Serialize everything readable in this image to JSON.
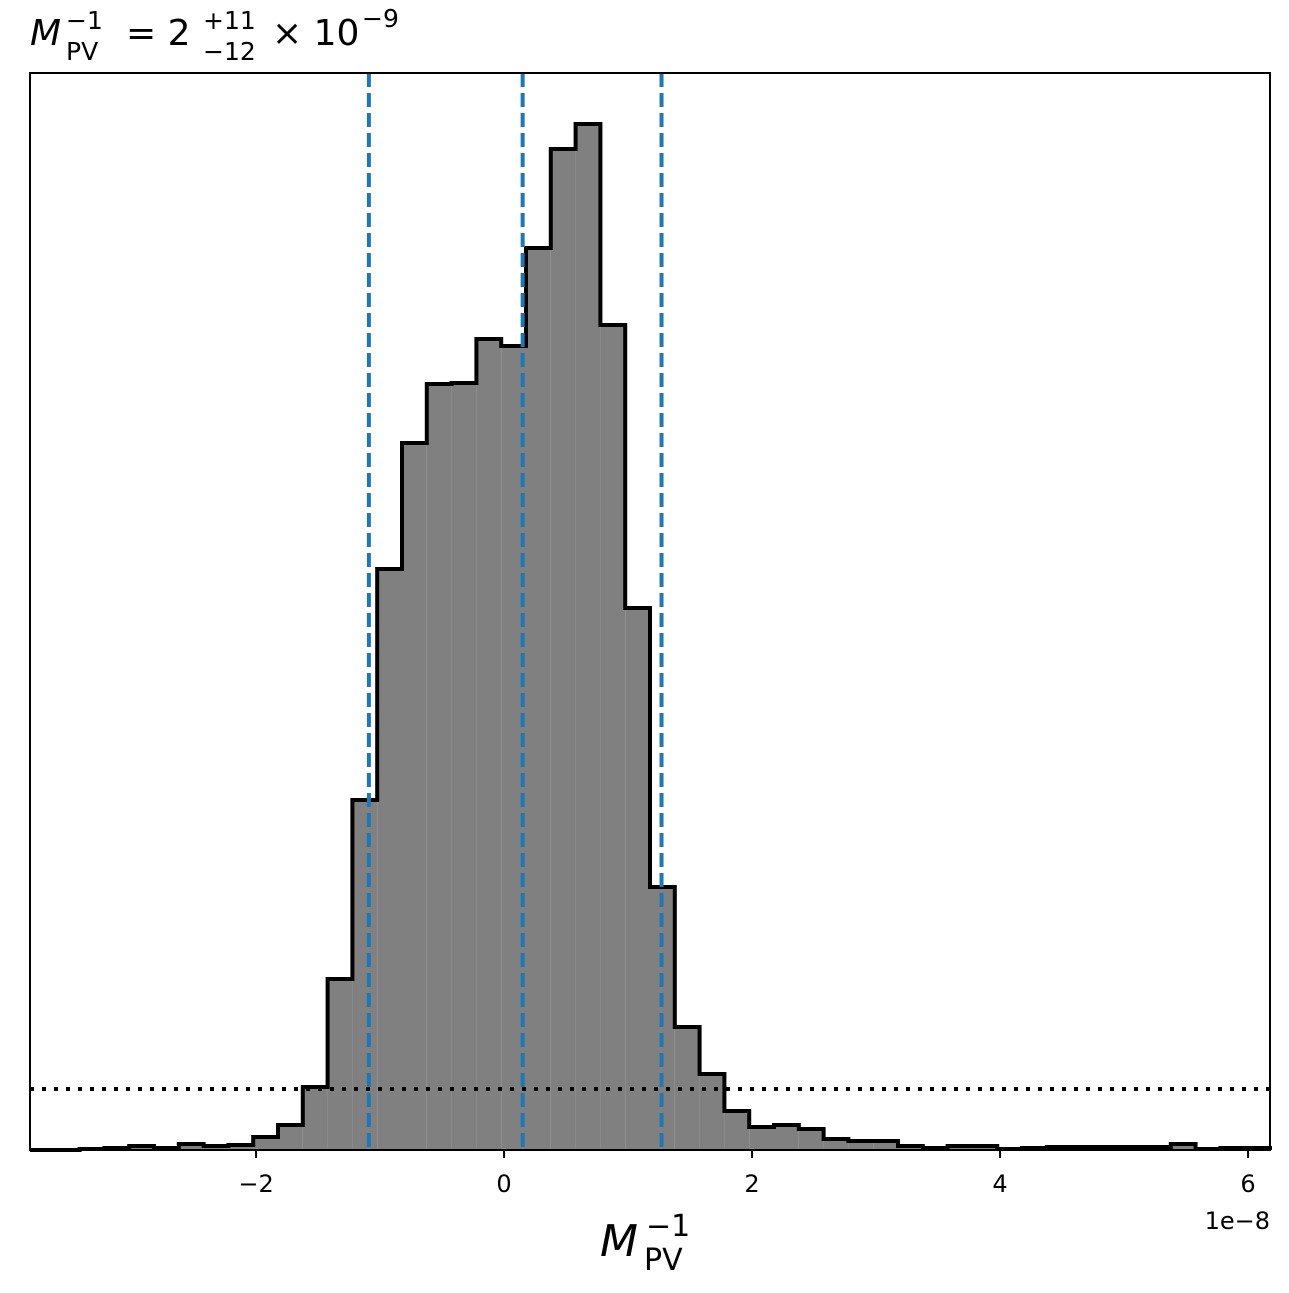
{
  "chart_data": {
    "type": "histogram",
    "title": {
      "base": "M",
      "sub": "PV",
      "sup": "−1",
      "rest": "= 2",
      "upper": "+11",
      "lower": "−12",
      "tail": "× 10",
      "exp": "−9"
    },
    "xlabel": {
      "base": "M",
      "sub": "PV",
      "sup": "−1"
    },
    "x_offset_label": "1e−8",
    "bins": [
      -3.823,
      -3.623,
      -3.423,
      -3.223,
      -3.023,
      -2.823,
      -2.623,
      -2.423,
      -2.223,
      -2.023,
      -1.823,
      -1.623,
      -1.423,
      -1.223,
      -1.023,
      -0.823,
      -0.623,
      -0.423,
      -0.223,
      -0.023,
      0.177,
      0.377,
      0.577,
      0.777,
      0.977,
      1.177,
      1.377,
      1.577,
      1.777,
      1.977,
      2.177,
      2.377,
      2.577,
      2.777,
      2.977,
      3.177,
      3.377,
      3.577,
      3.777,
      3.977,
      4.177,
      4.377,
      4.577,
      4.777,
      4.977,
      5.177,
      5.377,
      5.577,
      5.777,
      5.977,
      6.177
    ],
    "values": [
      0,
      0,
      0.01,
      0.02,
      0.04,
      0.02,
      0.06,
      0.04,
      0.05,
      0.13,
      0.25,
      0.63,
      1.71,
      3.5,
      5.81,
      7.07,
      7.66,
      7.67,
      8.11,
      8.04,
      9.02,
      10.01,
      10.26,
      8.25,
      5.42,
      2.63,
      1.23,
      0.76,
      0.39,
      0.23,
      0.25,
      0.21,
      0.11,
      0.09,
      0.09,
      0.04,
      0.02,
      0.04,
      0.04,
      0.01,
      0.02,
      0.03,
      0.03,
      0.03,
      0.03,
      0.03,
      0.06,
      0.01,
      0.02,
      0.02
    ],
    "color": "#808080",
    "edge_color": "#000000",
    "quantile_lines": [
      -1.09,
      0.15,
      1.27
    ],
    "quantile_color": "#1f77b4",
    "threshold_line": 0.61,
    "xlim": [
      -3.823,
      6.177
    ],
    "ylim": [
      0,
      10.77
    ],
    "xticks": [
      {
        "value": -2,
        "label": "−2"
      },
      0,
      2,
      4,
      6
    ]
  }
}
